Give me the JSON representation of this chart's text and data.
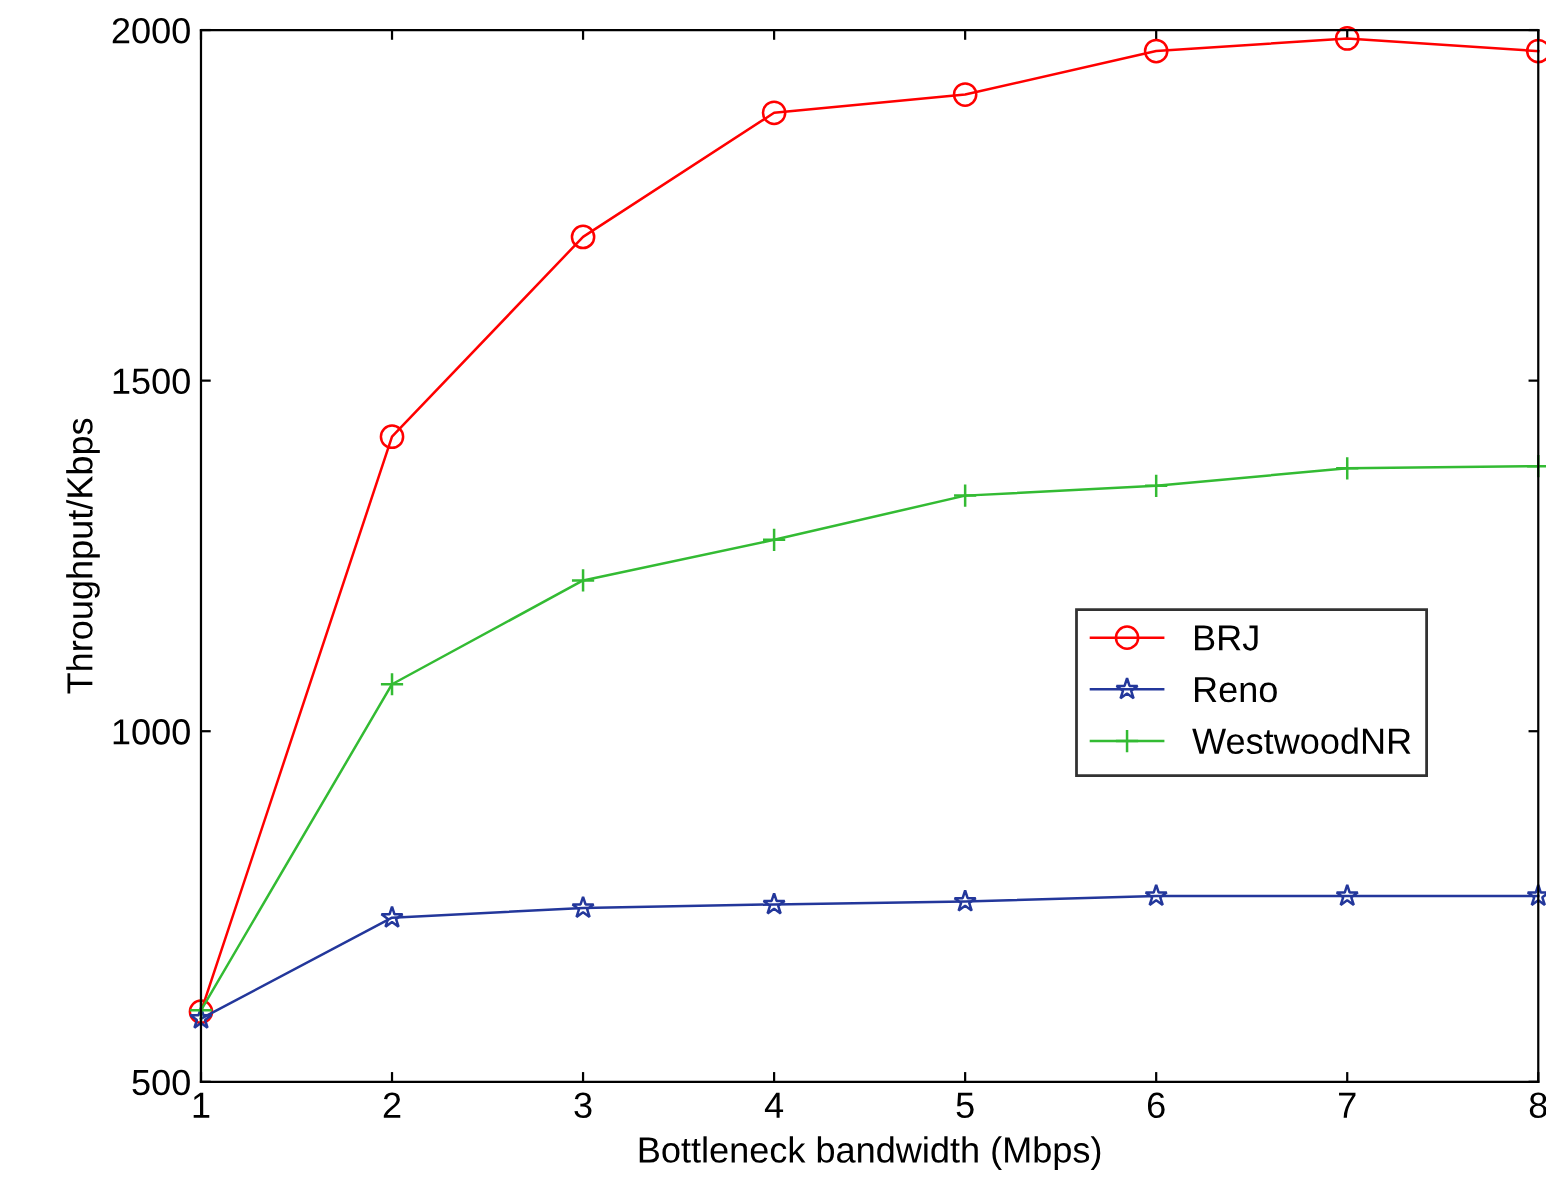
{
  "chart_data": {
    "type": "line",
    "xlabel": "Bottleneck bandwidth (Mbps)",
    "ylabel": "Throughput/Kbps",
    "x": [
      1,
      2,
      3,
      4,
      5,
      6,
      7,
      8
    ],
    "series": [
      {
        "name": "BRJ",
        "color": "#ff0000",
        "marker": "circle",
        "values": [
          600,
          1420,
          1705,
          1882,
          1908,
          1970,
          1988,
          1970
        ]
      },
      {
        "name": "Reno",
        "color": "#23379b",
        "marker": "star",
        "values": [
          590,
          734,
          748,
          753,
          757,
          765,
          765,
          765
        ]
      },
      {
        "name": "WestwoodNR",
        "color": "#33bb33",
        "marker": "cross",
        "values": [
          602,
          1067,
          1215,
          1273,
          1336,
          1350,
          1375,
          1378
        ]
      }
    ],
    "xlim": [
      1,
      8
    ],
    "xticks": [
      1,
      2,
      3,
      4,
      5,
      6,
      7,
      8
    ],
    "ylim": [
      500,
      2000
    ],
    "yticks": [
      500,
      1000,
      1500,
      2000
    ],
    "grid": false,
    "legend": "center right",
    "line_style": "solid"
  }
}
